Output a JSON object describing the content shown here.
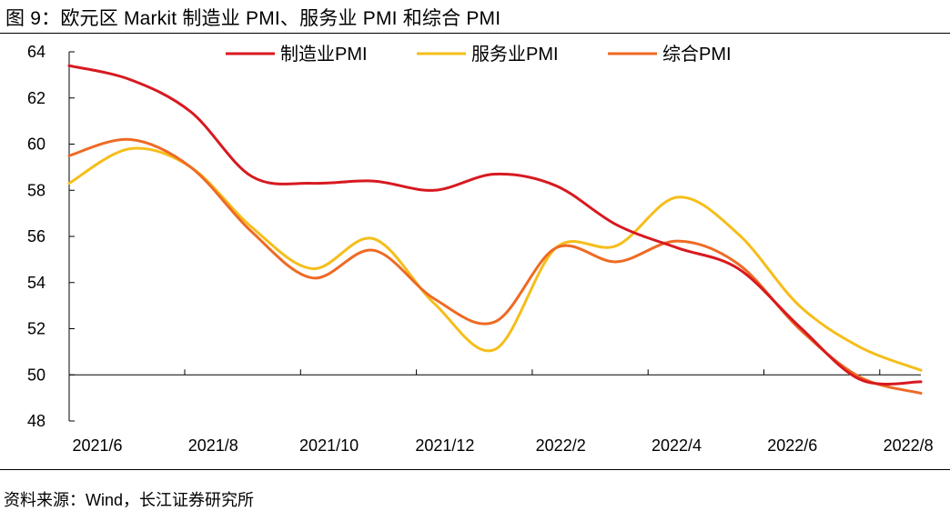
{
  "title": "图 9：欧元区 Markit 制造业 PMI、服务业 PMI 和综合 PMI",
  "source": "资料来源：Wind，长江证券研究所",
  "chart_data": {
    "type": "line",
    "title": "图 9：欧元区 Markit 制造业 PMI、服务业 PMI 和综合 PMI",
    "xlabel": "",
    "ylabel": "",
    "x": [
      "2021/6",
      "2021/7",
      "2021/8",
      "2021/9",
      "2021/10",
      "2021/11",
      "2021/12",
      "2022/1",
      "2022/2",
      "2022/3",
      "2022/4",
      "2022/5",
      "2022/6",
      "2022/7",
      "2022/8"
    ],
    "xtick_labels": [
      "2021/6",
      "2021/8",
      "2021/10",
      "2021/12",
      "2022/2",
      "2022/4",
      "2022/6",
      "2022/8"
    ],
    "ylim": [
      48,
      64
    ],
    "yticks": [
      48,
      50,
      52,
      54,
      56,
      58,
      60,
      62,
      64
    ],
    "grid": false,
    "legend_position": "top",
    "series": [
      {
        "name": "制造业PMI",
        "color": "#D71920",
        "values": [
          63.4,
          62.8,
          61.4,
          58.6,
          58.3,
          58.4,
          58.0,
          58.7,
          58.2,
          56.5,
          55.5,
          54.6,
          52.1,
          49.8,
          49.7
        ]
      },
      {
        "name": "服务业PMI",
        "color": "#F5BE1A",
        "values": [
          58.3,
          59.8,
          59.0,
          56.4,
          54.6,
          55.9,
          53.1,
          51.1,
          55.5,
          55.6,
          57.7,
          56.1,
          53.0,
          51.2,
          50.2
        ]
      },
      {
        "name": "综合PMI",
        "color": "#EE6A24",
        "values": [
          59.5,
          60.2,
          59.0,
          56.2,
          54.2,
          55.4,
          53.3,
          52.3,
          55.5,
          54.9,
          55.8,
          54.8,
          52.0,
          49.9,
          49.2
        ]
      }
    ]
  }
}
